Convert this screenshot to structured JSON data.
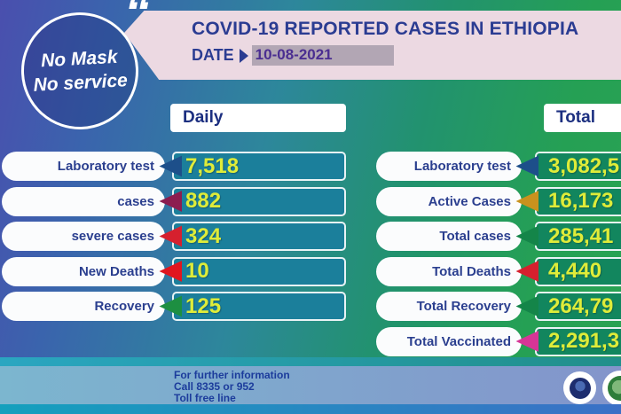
{
  "badge": {
    "line1": "No Mask",
    "line2": "No service",
    "quote": "“"
  },
  "header": {
    "title": "COVID-19 REPORTED CASES IN ETHIOPIA",
    "date_label": "DATE",
    "date_value": "10-08-2021"
  },
  "columns": {
    "daily": {
      "header": "Daily",
      "rows": [
        {
          "label": "Laboratory test",
          "value": "7,518",
          "arrow_color": "#1d4f8a"
        },
        {
          "label": "cases",
          "value": "882",
          "arrow_color": "#8c1d50"
        },
        {
          "label": "severe cases",
          "value": "324",
          "arrow_color": "#d6202e"
        },
        {
          "label": "New Deaths",
          "value": "10",
          "arrow_color": "#e0161f"
        },
        {
          "label": "Recovery",
          "value": "125",
          "arrow_color": "#1d8f41"
        }
      ]
    },
    "total": {
      "header": "Total",
      "rows": [
        {
          "label": "Laboratory test",
          "value": "3,082,5",
          "arrow_color": "#1d4f8a"
        },
        {
          "label": "Active Cases",
          "value": "16,173",
          "arrow_color": "#c9921e"
        },
        {
          "label": "Total cases",
          "value": "285,41",
          "arrow_color": "#148549"
        },
        {
          "label": "Total Deaths",
          "value": "4,440",
          "arrow_color": "#d6202e"
        },
        {
          "label": "Total Recovery",
          "value": "264,79",
          "arrow_color": "#148549"
        },
        {
          "label": "Total Vaccinated",
          "value": "2,291,3",
          "arrow_color": "#d63596"
        }
      ]
    }
  },
  "footer": {
    "line1": "For further information",
    "line2": "Call 8335 or 952",
    "line3": "Toll free line"
  },
  "icons": {
    "logo1": "globe-institute-logo",
    "logo2": "health-ministry-logo"
  },
  "colors": {
    "value_text": "#dfec39",
    "label_text": "#2b3f8f",
    "banner_bg": "#ecd9e2",
    "title_text": "#2b3c92",
    "date_value_text": "#4b2e91",
    "date_highlight_bg": "#b2a6b4",
    "daily_value_box": "#1b7f9b",
    "total_value_box": "#12865e",
    "bg_gradient_start": "#4a4fae",
    "bg_gradient_end": "#2aa353"
  },
  "chart_data": {
    "type": "table",
    "title": "COVID-19 REPORTED CASES IN ETHIOPIA",
    "date": "10-08-2021",
    "columns": [
      "Daily",
      "Total"
    ],
    "daily": {
      "Laboratory test": "7,518",
      "cases": "882",
      "severe cases": "324",
      "New Deaths": "10",
      "Recovery": "125"
    },
    "total": {
      "Laboratory test": "3,082,5 (truncated at image edge)",
      "Active Cases": "16,173",
      "Total cases": "285,41 (truncated at image edge)",
      "Total Deaths": "4,440",
      "Total Recovery": "264,79 (truncated at image edge)",
      "Total Vaccinated": "2,291,3 (truncated at image edge)"
    }
  }
}
